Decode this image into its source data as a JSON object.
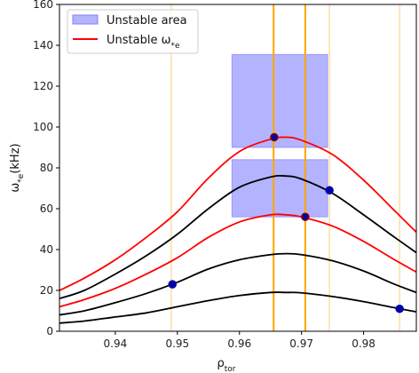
{
  "chart_data": {
    "type": "line",
    "xlabel": "ρ",
    "xlabel_sub": "tor",
    "ylabel": "ω",
    "ylabel_sub": "*e",
    "ylabel_unit": "(kHz)",
    "xlim": [
      0.931,
      0.9885
    ],
    "ylim": [
      0,
      160
    ],
    "xticks": [
      0.94,
      0.95,
      0.96,
      0.97,
      0.98
    ],
    "xtick_labels": [
      "0.94",
      "0.95",
      "0.96",
      "0.97",
      "0.98"
    ],
    "yticks": [
      0,
      20,
      40,
      60,
      80,
      100,
      120,
      140,
      160
    ],
    "ytick_labels": [
      "0",
      "20",
      "40",
      "60",
      "80",
      "100",
      "120",
      "140",
      "160"
    ],
    "grid": false,
    "legend": {
      "placement": "top-left",
      "entries": [
        {
          "label": "Unstable area",
          "color": "#8080ff",
          "kind": "patch"
        },
        {
          "label": "Unstable ω",
          "sub": "*e",
          "color": "#ff0000",
          "kind": "line"
        }
      ]
    },
    "unstable_areas": [
      {
        "x": [
          0.9588,
          0.9742
        ],
        "y": [
          56,
          84
        ]
      },
      {
        "x": [
          0.9588,
          0.9742
        ],
        "y": [
          90,
          135.5
        ]
      }
    ],
    "vlines_strong": {
      "color": "#ffa500",
      "x": [
        0.9655,
        0.9706
      ]
    },
    "vlines_faint": {
      "color": "#ffd591",
      "x": [
        0.949,
        0.9745,
        0.9858
      ]
    },
    "series": [
      {
        "color": "#000000",
        "x": [
          0.931,
          0.935,
          0.94,
          0.945,
          0.95,
          0.955,
          0.96,
          0.965,
          0.9675,
          0.97,
          0.975,
          0.98,
          0.985,
          0.9885
        ],
        "values": [
          4,
          5,
          7,
          9,
          12,
          15,
          17.5,
          19,
          19,
          18.8,
          17,
          14.5,
          11.5,
          9.5
        ]
      },
      {
        "color": "#000000",
        "x": [
          0.931,
          0.935,
          0.94,
          0.945,
          0.95,
          0.955,
          0.96,
          0.965,
          0.9675,
          0.97,
          0.975,
          0.98,
          0.985,
          0.9885
        ],
        "values": [
          8,
          10,
          14,
          18.5,
          24,
          30.5,
          35,
          37.5,
          38,
          37.5,
          34.5,
          29.5,
          23,
          19
        ]
      },
      {
        "color": "#ff0000",
        "x": [
          0.931,
          0.935,
          0.94,
          0.945,
          0.95,
          0.955,
          0.96,
          0.965,
          0.9675,
          0.97,
          0.975,
          0.98,
          0.985,
          0.9885
        ],
        "values": [
          12,
          15.5,
          21,
          28,
          36,
          46,
          53.5,
          57,
          57,
          56,
          51.5,
          44,
          35,
          29
        ]
      },
      {
        "color": "#000000",
        "x": [
          0.931,
          0.935,
          0.94,
          0.945,
          0.95,
          0.955,
          0.96,
          0.965,
          0.9675,
          0.97,
          0.975,
          0.98,
          0.985,
          0.9885
        ],
        "values": [
          16,
          20,
          28,
          37,
          47.5,
          60,
          70.5,
          75.5,
          76,
          74.5,
          67.5,
          57,
          46,
          38.5
        ]
      },
      {
        "color": "#ff0000",
        "x": [
          0.931,
          0.935,
          0.94,
          0.945,
          0.95,
          0.955,
          0.96,
          0.965,
          0.9675,
          0.97,
          0.975,
          0.98,
          0.985,
          0.9885
        ],
        "values": [
          20,
          26,
          35,
          46,
          58.5,
          75,
          88,
          94,
          95,
          93.5,
          86.5,
          74,
          59,
          48.5
        ]
      }
    ],
    "markers": [
      {
        "x": 0.9492,
        "y": 23,
        "face": "#0000a8",
        "edge": "#0000a8"
      },
      {
        "x": 0.9656,
        "y": 95,
        "face": "#0000a8",
        "edge": "#800000"
      },
      {
        "x": 0.9706,
        "y": 56,
        "face": "#0000a8",
        "edge": "#800000"
      },
      {
        "x": 0.9745,
        "y": 69,
        "face": "#0000a8",
        "edge": "#0000a8"
      },
      {
        "x": 0.9858,
        "y": 11,
        "face": "#0000a8",
        "edge": "#0000a8"
      }
    ]
  }
}
